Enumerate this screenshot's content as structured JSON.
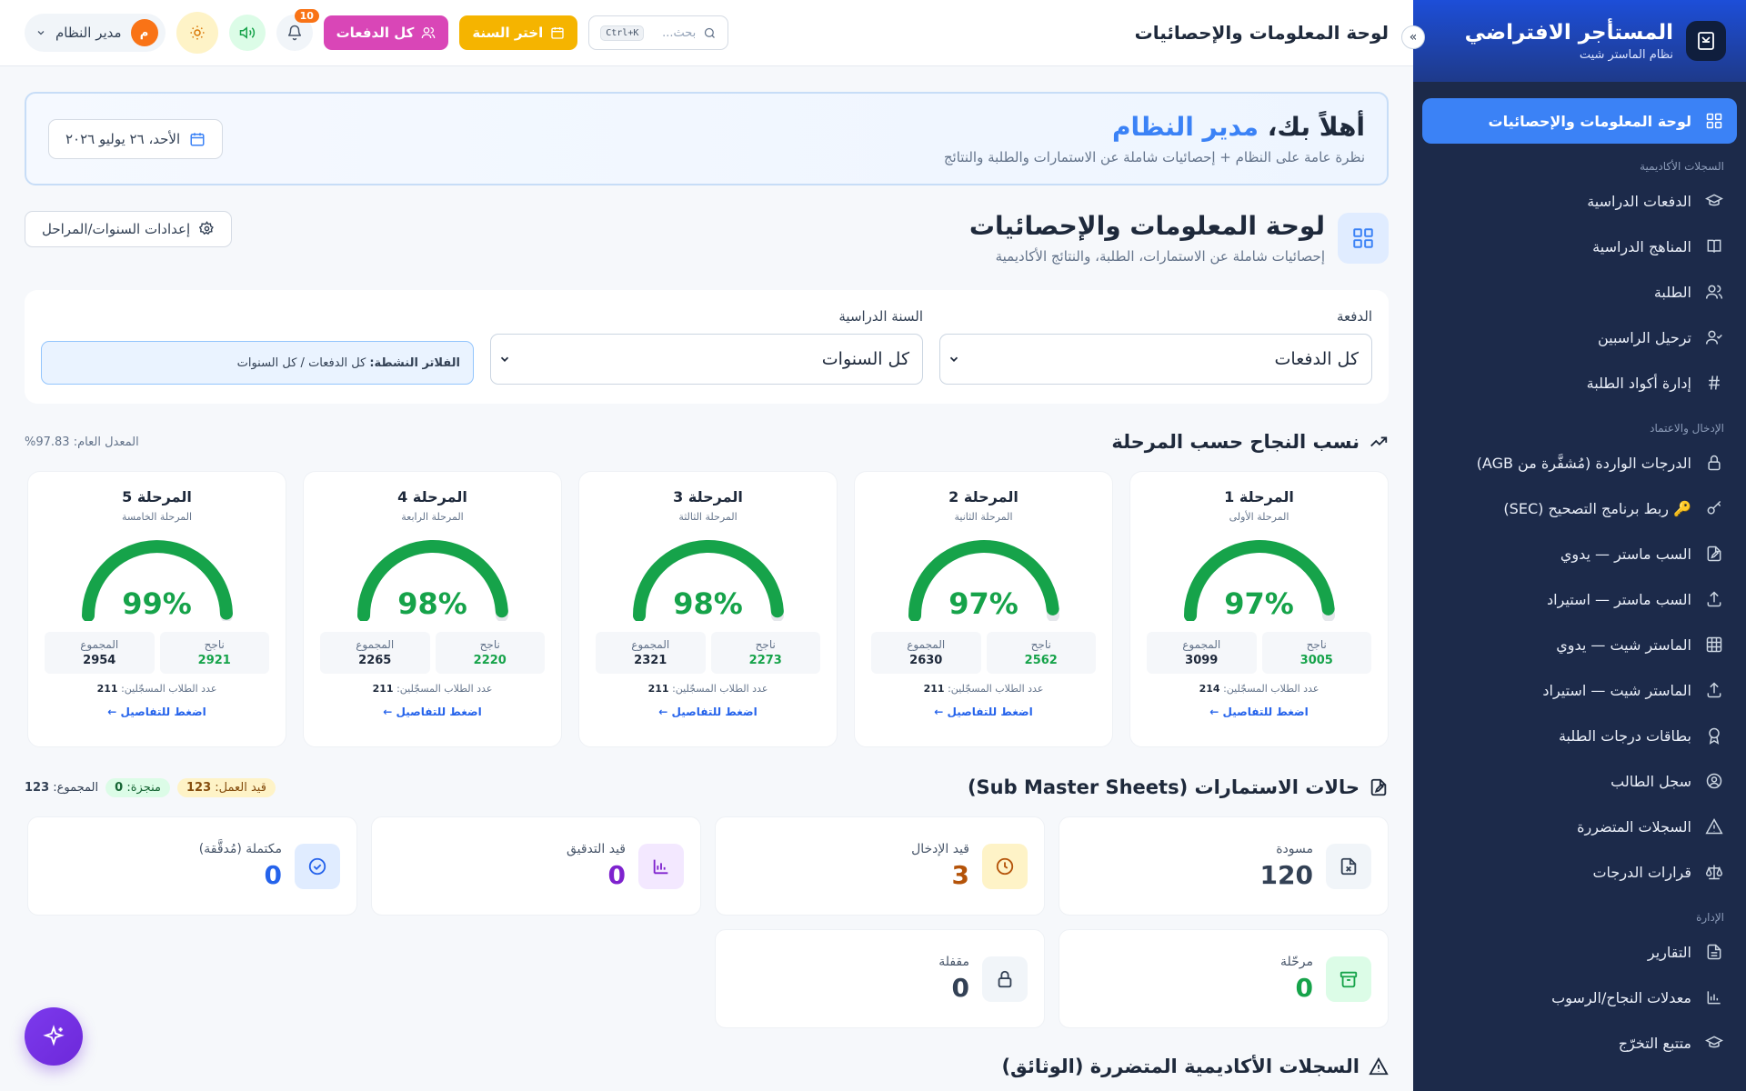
{
  "brand": {
    "title": "المستأجر الافتراضي",
    "subtitle": "نظام الماستر شيت"
  },
  "sidebar": {
    "active": {
      "label": "لوحة المعلومات والإحصائيات",
      "icon": "grid-icon"
    },
    "sections": [
      {
        "title": "السجلات الأكاديمية",
        "items": [
          {
            "label": "الدفعات الدراسية",
            "icon": "graduation-cap-icon"
          },
          {
            "label": "المناهج الدراسية",
            "icon": "book-icon"
          },
          {
            "label": "الطلبة",
            "icon": "users-icon"
          },
          {
            "label": "ترحيل الراسبين",
            "icon": "user-check-icon"
          },
          {
            "label": "إدارة أكواد الطلبة",
            "icon": "hash-icon"
          }
        ]
      },
      {
        "title": "الإدخال والاعتماد",
        "items": [
          {
            "label": "الدرجات الواردة (مُشفَّرة من AGB)",
            "icon": "lock-icon"
          },
          {
            "label": "🔑 ربط برنامج التصحيح (SEC)",
            "icon": "key-icon"
          },
          {
            "label": "السب ماستر — يدوي",
            "icon": "file-edit-icon"
          },
          {
            "label": "السب ماستر — استيراد",
            "icon": "upload-icon"
          },
          {
            "label": "الماستر شيت — يدوي",
            "icon": "table-icon"
          },
          {
            "label": "الماستر شيت — استيراد",
            "icon": "upload-icon"
          },
          {
            "label": "بطاقات درجات الطلبة",
            "icon": "award-icon"
          },
          {
            "label": "سجل الطالب",
            "icon": "user-circle-icon"
          },
          {
            "label": "السجلات المتضررة",
            "icon": "alert-triangle-icon"
          },
          {
            "label": "قرارات الدرجات",
            "icon": "scale-icon"
          }
        ]
      },
      {
        "title": "الإدارة",
        "items": [
          {
            "label": "التقارير",
            "icon": "file-text-icon"
          },
          {
            "label": "معدلات النجاح/الرسوب",
            "icon": "bar-chart-icon"
          },
          {
            "label": "متتبع التخرّج",
            "icon": "graduation-cap-icon"
          }
        ]
      }
    ]
  },
  "topbar": {
    "title": "لوحة المعلومات والإحصائيات",
    "search_placeholder": "بحث...",
    "search_shortcut": "Ctrl+K",
    "year_button": "اختر السنة",
    "batch_button": "كل الدفعات",
    "notifications_count": "10",
    "user_name": "مدير النظام",
    "user_initial": "م"
  },
  "welcome": {
    "greeting": "أهلاً بك،",
    "name": "مدير النظام",
    "subtitle": "نظرة عامة على النظام + إحصائيات شاملة عن الاستمارات والطلبة والنتائج",
    "date": "الأحد، ٢٦ يوليو ٢٠٢٦"
  },
  "page": {
    "title": "لوحة المعلومات والإحصائيات",
    "subtitle": "إحصائيات شاملة عن الاستمارات، الطلبة، والنتائج الأكاديمية",
    "settings_button": "إعدادات السنوات/المراحل"
  },
  "filters": {
    "batch_label": "الدفعة",
    "batch_value": "كل الدفعات",
    "year_label": "السنة الدراسية",
    "year_value": "كل السنوات",
    "active_label": "الفلاتر النشطة:",
    "active_value": "كل الدفعات / كل السنوات"
  },
  "pass_section": {
    "title": "نسب النجاح حسب المرحلة",
    "average": "المعدل العام: 97.83%",
    "passed_label": "ناجح",
    "total_label": "المجموع",
    "enrolled_label": "عدد الطلاب المسجّلين:",
    "details_link": "اضغط للتفاصيل ←",
    "gauge_color": "#16a34a",
    "stages": [
      {
        "name": "المرحلة 1",
        "sub": "المرحلة الأولى",
        "percent": 97,
        "percent_text": "97%",
        "passed": "3005",
        "total": "3099",
        "enrolled": "214"
      },
      {
        "name": "المرحلة 2",
        "sub": "المرحلة الثانية",
        "percent": 97,
        "percent_text": "97%",
        "passed": "2562",
        "total": "2630",
        "enrolled": "211"
      },
      {
        "name": "المرحلة 3",
        "sub": "المرحلة الثالثة",
        "percent": 98,
        "percent_text": "98%",
        "passed": "2273",
        "total": "2321",
        "enrolled": "211"
      },
      {
        "name": "المرحلة 4",
        "sub": "المرحلة الرابعة",
        "percent": 98,
        "percent_text": "98%",
        "passed": "2220",
        "total": "2265",
        "enrolled": "211"
      },
      {
        "name": "المرحلة 5",
        "sub": "المرحلة الخامسة",
        "percent": 99,
        "percent_text": "99%",
        "passed": "2921",
        "total": "2954",
        "enrolled": "211"
      }
    ]
  },
  "forms_section": {
    "title": "حالات الاستمارات (Sub Master Sheets)",
    "in_progress_label": "قيد العمل:",
    "in_progress_value": "123",
    "done_label": "منجزة:",
    "done_value": "0",
    "total_label": "المجموع:",
    "total_value": "123",
    "cards": [
      {
        "label": "مسودة",
        "value": "120",
        "icon": "file-x-icon",
        "color": "#334155",
        "bg": "#f1f5f9"
      },
      {
        "label": "قيد الإدخال",
        "value": "3",
        "icon": "clock-icon",
        "color": "#b45309",
        "bg": "#fef3c7"
      },
      {
        "label": "قيد التدقيق",
        "value": "0",
        "icon": "bar-chart-icon",
        "color": "#7e22ce",
        "bg": "#f3e8ff"
      },
      {
        "label": "مكتملة (مُدقَّقة)",
        "value": "0",
        "icon": "check-circle-icon",
        "color": "#2563eb",
        "bg": "#e0ecff"
      },
      {
        "label": "مرحّلة",
        "value": "0",
        "icon": "archive-icon",
        "color": "#16a34a",
        "bg": "#dcfce7"
      },
      {
        "label": "مقفلة",
        "value": "0",
        "icon": "lock-icon",
        "color": "#334155",
        "bg": "#f1f5f9"
      }
    ]
  },
  "damaged_section": {
    "title": "السجلات الأكاديمية المتضررة (الوثائق)"
  }
}
